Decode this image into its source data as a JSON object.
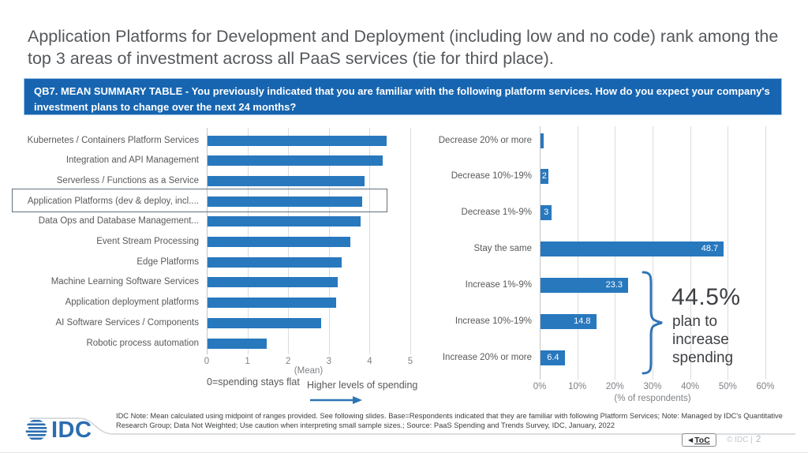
{
  "slide": {
    "title": "Application Platforms for Development and Deployment (including low and no code) rank among the top 3 areas of investment across all PaaS services (tie for third place).",
    "question_banner": "QB7. MEAN SUMMARY TABLE - You previously indicated that you are familiar with the following platform services. How do you expect your company's investment plans to change over the next 24 months?",
    "footnote": "IDC Note: Mean calculated using midpoint of ranges provided. See following slides. Base=Respondents indicated that they are familiar with following Platform Services; Note: Managed by IDC's Quantitative Research Group; Data Not Weighted; Use caution when interpreting small sample sizes.; Source: PaaS Spending and Trends Survey, IDC, January, 2022",
    "logo_text": "IDC",
    "toc": {
      "icon": "◀",
      "label": "ToC"
    },
    "copyright": "© IDC |",
    "page_number": "2"
  },
  "colors": {
    "bar": "#2878be",
    "banner_bg": "#1765b0",
    "accent_blue": "#2e74b5",
    "logo_blue": "#2a6db0",
    "text_gray": "#595959"
  },
  "chart_data": [
    {
      "type": "bar",
      "orientation": "horizontal",
      "categories": [
        "Kubernetes / Containers Platform Services",
        "Integration and API Management",
        "Serverless / Functions as a Service",
        "Application Platforms (dev & deploy, incl....",
        "Data Ops and Database Management...",
        "Event Stream Processing",
        "Edge Platforms",
        "Machine Learning Software Services",
        "Application deployment platforms",
        "AI Software Services / Components",
        "Robotic process automation"
      ],
      "values": [
        4.4,
        4.3,
        3.85,
        3.8,
        3.75,
        3.5,
        3.3,
        3.2,
        3.15,
        2.8,
        1.45
      ],
      "highlighted_category": "Application Platforms (dev & deploy, incl....",
      "xlim": [
        0,
        5
      ],
      "xticks": [
        "0",
        "1",
        "2",
        "3",
        "4",
        "5"
      ],
      "xlabel": "(Mean)",
      "note_left": "0=spending stays flat",
      "note_right": "Higher levels of spending",
      "grid": true,
      "legend": "none"
    },
    {
      "type": "bar",
      "orientation": "horizontal",
      "categories": [
        "Decrease 20% or more",
        "Decrease 10%-19%",
        "Decrease 1%-9%",
        "Stay the same",
        "Increase 1%-9%",
        "Increase 10%-19%",
        "Increase 20% or more"
      ],
      "values": [
        0.8,
        2,
        3,
        48.7,
        23.3,
        14.8,
        6.4
      ],
      "data_labels": [
        "",
        "2",
        "3",
        "48.7",
        "23.3",
        "14.8",
        "6.4"
      ],
      "xlim": [
        0,
        60
      ],
      "xticks": [
        "0%",
        "10%",
        "20%",
        "30%",
        "40%",
        "50%",
        "60%"
      ],
      "xlabel": "(% of respondents)",
      "annotation": {
        "value": "44.5%",
        "text": "plan to increase spending"
      },
      "grid": true,
      "legend": "none"
    }
  ]
}
